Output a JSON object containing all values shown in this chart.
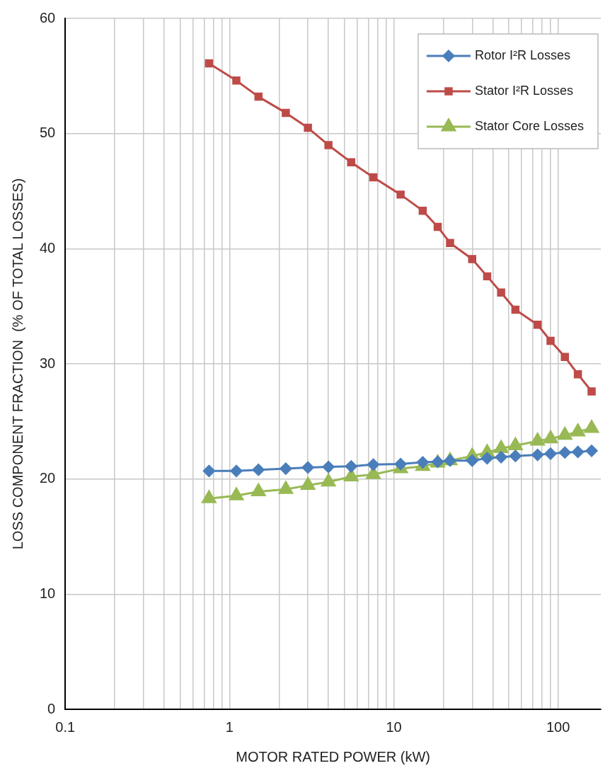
{
  "chart_data": {
    "type": "line",
    "xlabel": "MOTOR RATED POWER (kW)",
    "ylabel": "LOSS COMPONENT FRACTION  (% OF TOTAL LOSSES)",
    "log": "x",
    "x": [
      0.75,
      1.1,
      1.5,
      2.2,
      3,
      4,
      5.5,
      7.5,
      11,
      15,
      18.5,
      22,
      30,
      37,
      45,
      55,
      75,
      90,
      110,
      132,
      160
    ],
    "series": [
      {
        "name": "Rotor I²R Losses",
        "color": "#4a7ebb",
        "marker": "diamond",
        "values": [
          20.7,
          20.7,
          20.8,
          20.9,
          21.0,
          21.05,
          21.1,
          21.25,
          21.3,
          21.45,
          21.5,
          21.6,
          21.6,
          21.8,
          21.9,
          22.0,
          22.1,
          22.2,
          22.3,
          22.35,
          22.45
        ]
      },
      {
        "name": "Stator I²R Losses",
        "color": "#be4b48",
        "marker": "square",
        "values": [
          56.1,
          54.6,
          53.2,
          51.8,
          50.5,
          49.0,
          47.5,
          46.2,
          44.7,
          43.3,
          41.9,
          40.5,
          39.1,
          37.6,
          36.2,
          34.7,
          33.4,
          32.0,
          30.6,
          29.1,
          27.6
        ]
      },
      {
        "name": "Stator Core Losses",
        "color": "#98b954",
        "marker": "triangle",
        "values": [
          18.3,
          18.55,
          18.9,
          19.1,
          19.45,
          19.75,
          20.2,
          20.4,
          20.9,
          21.1,
          21.4,
          21.6,
          22.0,
          22.3,
          22.65,
          22.9,
          23.3,
          23.5,
          23.8,
          24.1,
          24.4
        ]
      }
    ],
    "xlim": [
      0.1,
      182
    ],
    "xticks": [
      0.1,
      {
        "value": 0.2,
        "label": null
      },
      {
        "value": 0.3,
        "label": null
      },
      {
        "value": 0.4,
        "label": null
      },
      {
        "value": 0.5,
        "label": null
      },
      {
        "value": 0.6,
        "label": null
      },
      {
        "value": 0.7,
        "label": null
      },
      {
        "value": 0.8,
        "label": null
      },
      {
        "value": 0.9,
        "label": null
      },
      1,
      {
        "value": 2,
        "label": null
      },
      {
        "value": 3,
        "label": null
      },
      {
        "value": 4,
        "label": null
      },
      {
        "value": 5,
        "label": null
      },
      {
        "value": 6,
        "label": null
      },
      {
        "value": 7,
        "label": null
      },
      {
        "value": 8,
        "label": null
      },
      {
        "value": 9,
        "label": null
      },
      10,
      {
        "value": 20,
        "label": null
      },
      {
        "value": 30,
        "label": null
      },
      {
        "value": 40,
        "label": null
      },
      {
        "value": 50,
        "label": null
      },
      {
        "value": 60,
        "label": null
      },
      {
        "value": 70,
        "label": null
      },
      {
        "value": 80,
        "label": null
      },
      {
        "value": 90,
        "label": null
      },
      100
    ],
    "ylim": [
      0,
      60
    ],
    "yticks": [
      0,
      10,
      20,
      30,
      40,
      50,
      60
    ],
    "grid": true,
    "legend": "top right",
    "line_style": "solid"
  }
}
